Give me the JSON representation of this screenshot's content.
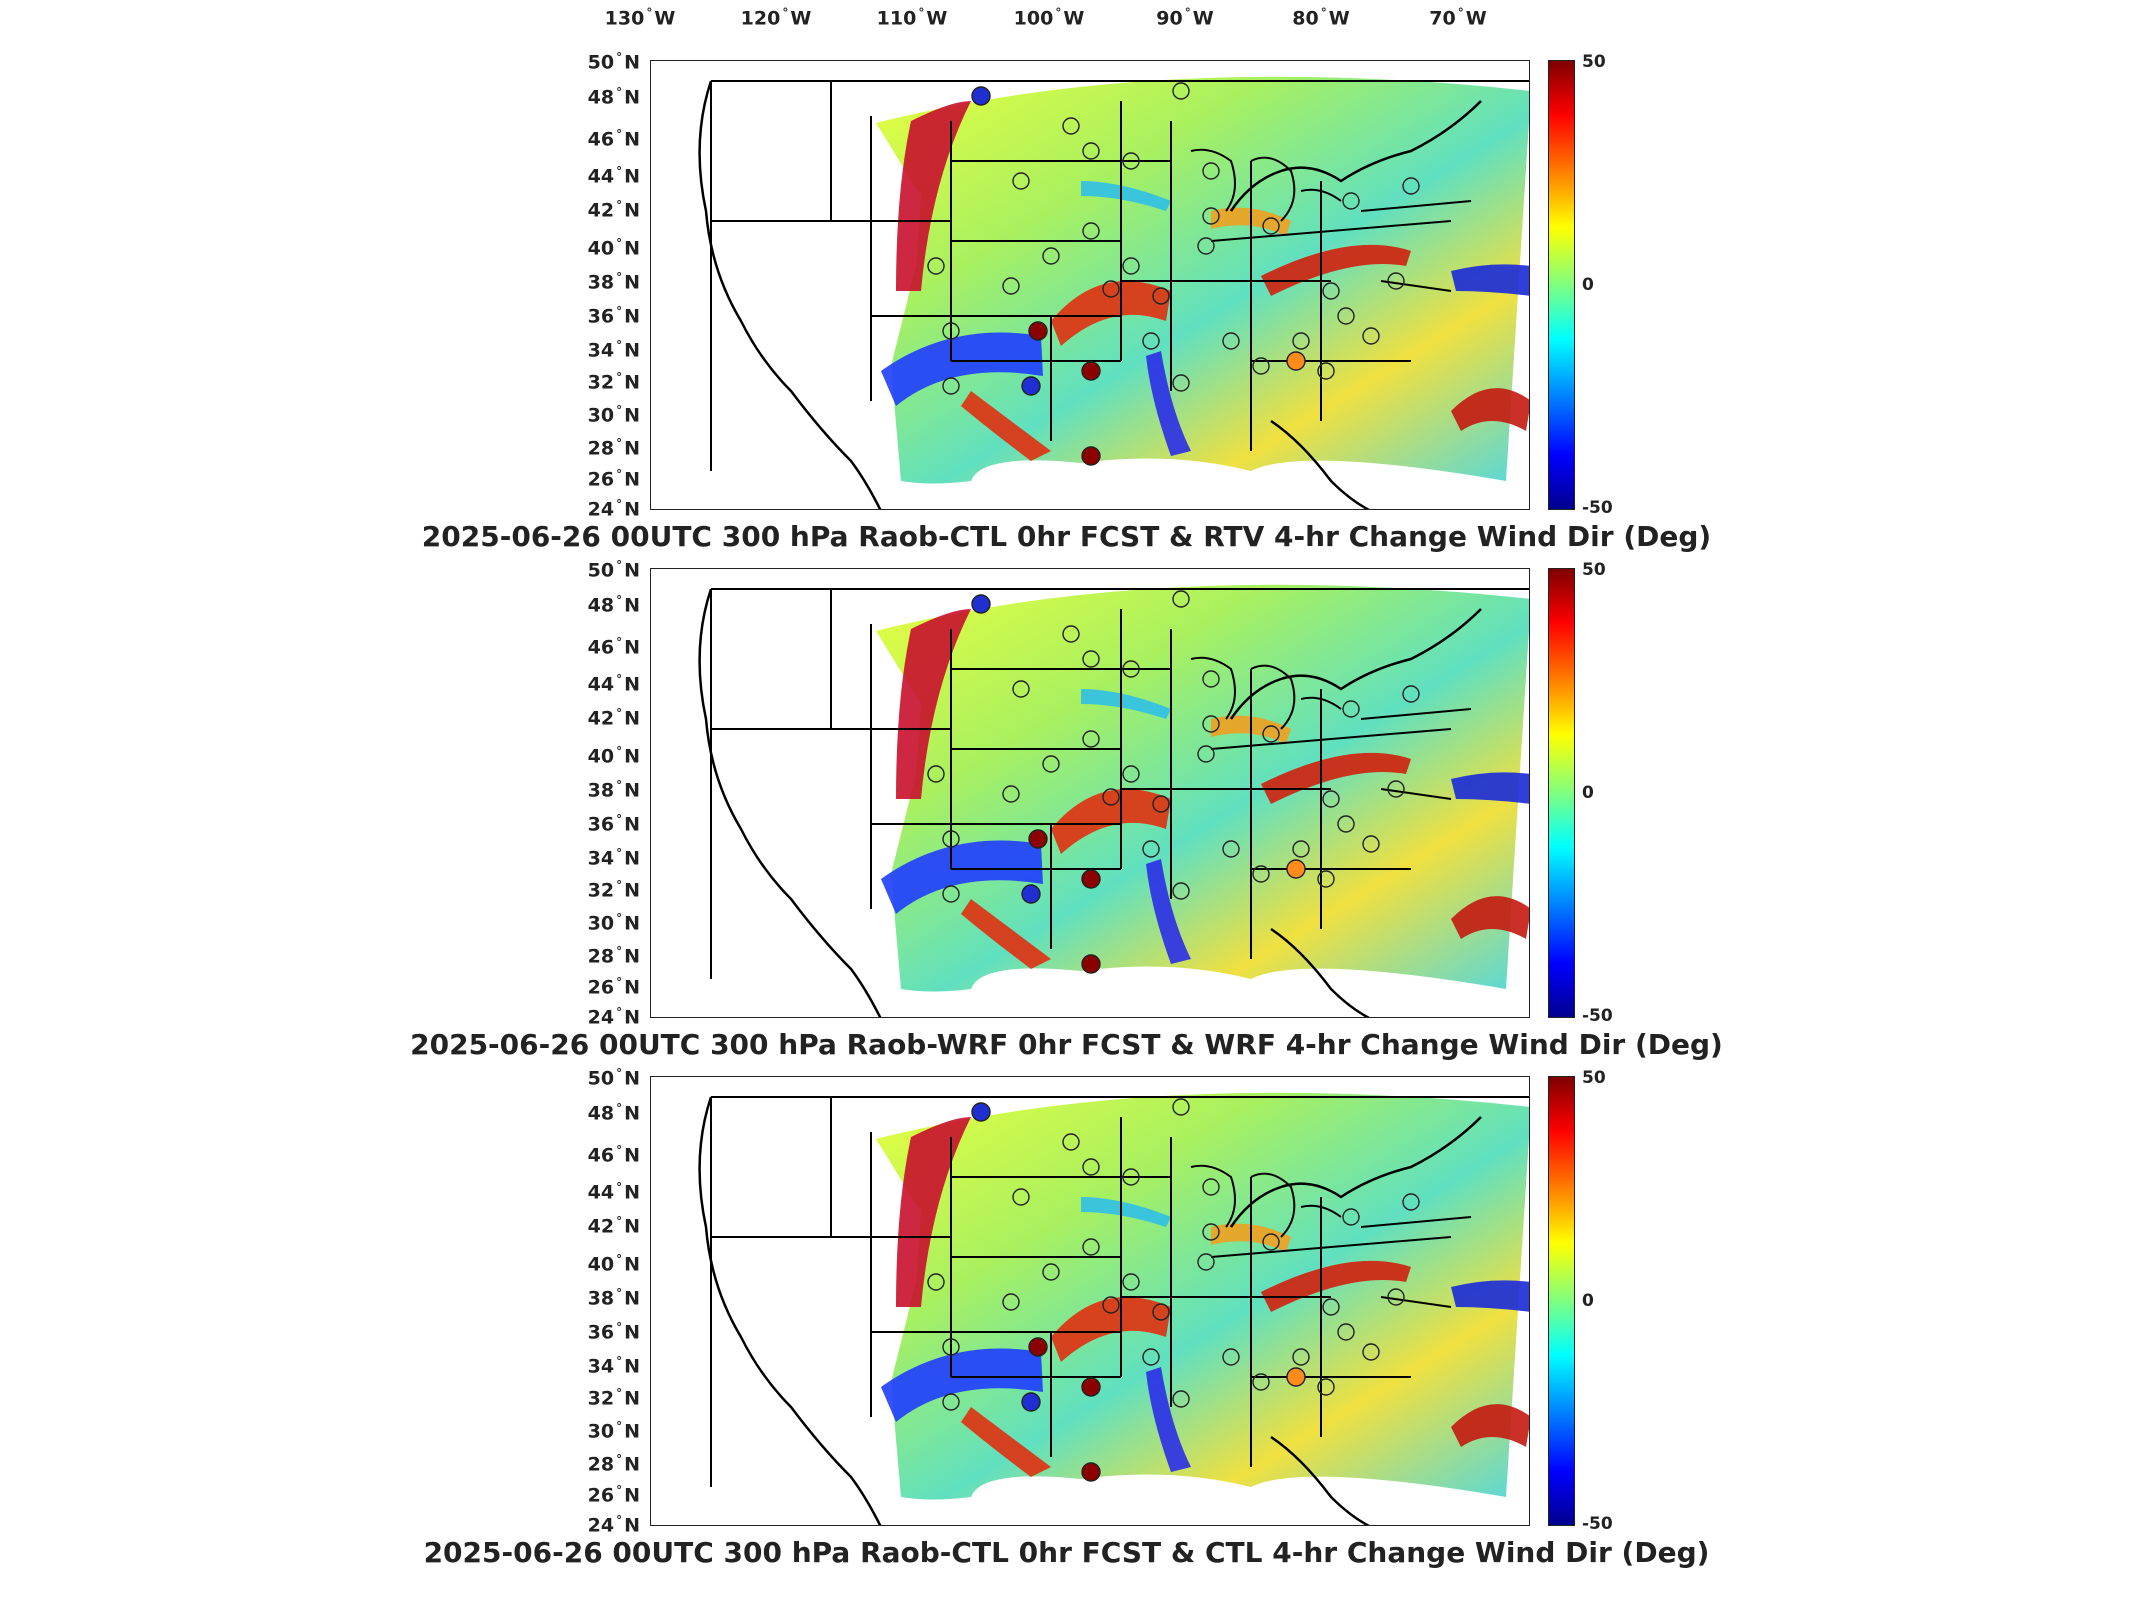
{
  "longitude_labels": [
    "130",
    "120",
    "110",
    "100",
    "90",
    "80",
    "70"
  ],
  "longitude_suffix": "W",
  "latitude_labels": [
    "50",
    "48",
    "46",
    "44",
    "42",
    "40",
    "38",
    "36",
    "34",
    "32",
    "30",
    "28",
    "26",
    "24"
  ],
  "latitude_suffix": "N",
  "degree_symbol": "°",
  "colorbar": {
    "max_label": "50",
    "mid_label": "0",
    "min_label": "-50",
    "colormap": "jet",
    "colors": [
      "#7f0000",
      "#ff0000",
      "#ff8000",
      "#ffff00",
      "#80ff80",
      "#00ffff",
      "#0080ff",
      "#0000ff",
      "#00008f"
    ]
  },
  "panels": [
    {
      "title": "2025-06-26 00UTC 300 hPa Raob-CTL 0hr FCST & RTV 4-hr Change Wind Dir (Deg)"
    },
    {
      "title": "2025-06-26 00UTC 300 hPa Raob-WRF 0hr FCST & WRF 4-hr Change Wind Dir (Deg)"
    },
    {
      "title": "2025-06-26 00UTC 300 hPa Raob-CTL 0hr FCST & CTL 4-hr Change Wind Dir (Deg)"
    }
  ],
  "stations": {
    "neutral_color": "none",
    "strong_positive_color": "#8b0000",
    "moderate_positive_color": "#ff8c1a",
    "strong_negative_color": "#1f2fd1"
  }
}
